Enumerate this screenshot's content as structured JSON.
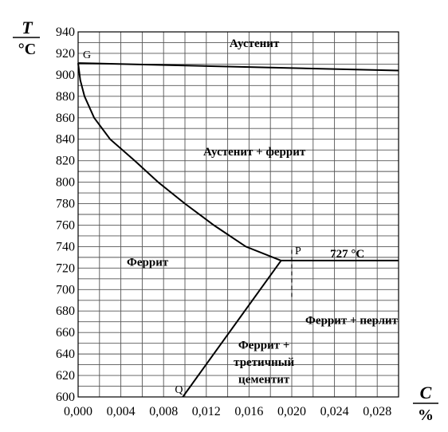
{
  "chart_data": {
    "type": "line",
    "xlabel": "C",
    "xunit": "%",
    "ylabel": "T",
    "yunit": "°C",
    "xlim": [
      0,
      0.03
    ],
    "ylim": [
      600,
      940
    ],
    "x_ticks": [
      "0,000",
      "0,004",
      "0,008",
      "0,012",
      "0,016",
      "0,020",
      "0,024",
      "0,028"
    ],
    "y_ticks": [
      "600",
      "620",
      "640",
      "660",
      "680",
      "700",
      "720",
      "740",
      "760",
      "780",
      "800",
      "820",
      "840",
      "860",
      "880",
      "900",
      "920",
      "940"
    ],
    "grid": true,
    "series": [
      {
        "id": "austenite-upper",
        "points": [
          [
            0,
            911
          ],
          [
            0.03,
            904
          ]
        ]
      },
      {
        "id": "GP",
        "points": [
          [
            0,
            911
          ],
          [
            0.0002,
            895
          ],
          [
            0.0006,
            880
          ],
          [
            0.0015,
            860
          ],
          [
            0.003,
            840
          ],
          [
            0.0053,
            820
          ],
          [
            0.0075,
            800
          ],
          [
            0.01,
            780
          ],
          [
            0.0127,
            760
          ],
          [
            0.0157,
            740
          ],
          [
            0.019,
            727
          ]
        ]
      },
      {
        "id": "PQ",
        "points": [
          [
            0.0098,
            600
          ],
          [
            0.019,
            727
          ]
        ]
      },
      {
        "id": "eutectoid",
        "points": [
          [
            0.019,
            727
          ],
          [
            0.03,
            727
          ]
        ]
      }
    ],
    "dashed_lines": [
      {
        "points": [
          [
            0.02,
            737
          ],
          [
            0.02,
            690
          ]
        ]
      }
    ],
    "point_labels": [
      {
        "text": "G",
        "x": 0,
        "y": 911
      },
      {
        "text": "P",
        "x": 0.02,
        "y": 727
      },
      {
        "text": "Q",
        "x": 0.0098,
        "y": 600
      }
    ],
    "annotations": [
      {
        "text": "727 °C",
        "x": 0.0252,
        "y": 730
      }
    ],
    "regions": [
      {
        "text": "Аустенит",
        "x": 0.0165,
        "y": 926
      },
      {
        "text": "Аустенит + феррит",
        "x": 0.0165,
        "y": 825
      },
      {
        "text": "Феррит",
        "x": 0.0065,
        "y": 722
      },
      {
        "text": "Феррит + перлит",
        "x": 0.0256,
        "y": 668
      },
      {
        "text": "Феррит +",
        "x": 0.0174,
        "y": 645
      },
      {
        "text": "третичный",
        "x": 0.0174,
        "y": 629
      },
      {
        "text": "цементит",
        "x": 0.0174,
        "y": 613
      }
    ]
  }
}
